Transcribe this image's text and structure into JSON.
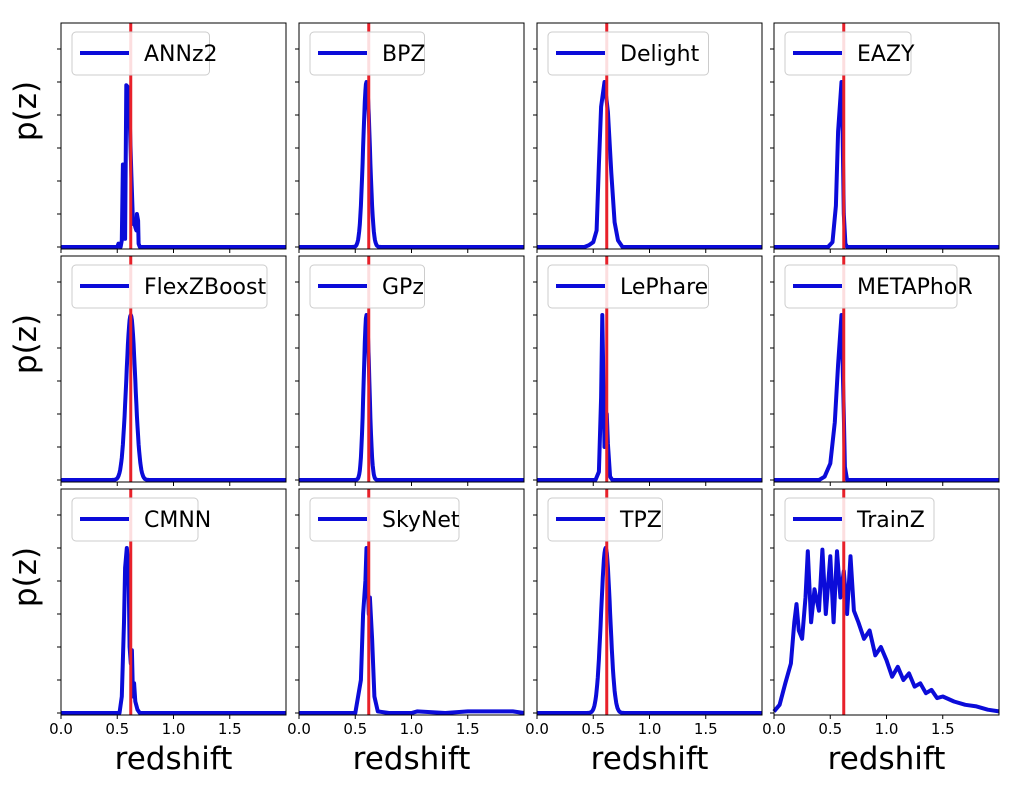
{
  "figure": {
    "ylabel": "p(z)",
    "xlabel": "redshift",
    "true_redshift_color": "#e8212a",
    "pdf_color": "#0b0bd9",
    "axis_color": "#000000"
  },
  "chart_data": [
    {
      "type": "line",
      "legend": "ANNz2",
      "xlim": [
        0,
        2
      ],
      "ylim": [
        0,
        1
      ],
      "true_z": 0.62,
      "points": [
        [
          0,
          0
        ],
        [
          0.5,
          0
        ],
        [
          0.51,
          0.02
        ],
        [
          0.53,
          0
        ],
        [
          0.54,
          0.04
        ],
        [
          0.55,
          0.5
        ],
        [
          0.56,
          0.5
        ],
        [
          0.57,
          0.05
        ],
        [
          0.58,
          0.98
        ],
        [
          0.595,
          0.97
        ],
        [
          0.61,
          0.8
        ],
        [
          0.625,
          0.45
        ],
        [
          0.64,
          0.14
        ],
        [
          0.65,
          0.15
        ],
        [
          0.66,
          0.12
        ],
        [
          0.67,
          0.1
        ],
        [
          0.675,
          0.2
        ],
        [
          0.685,
          0.16
        ],
        [
          0.69,
          0.02
        ],
        [
          0.7,
          0
        ],
        [
          2,
          0
        ]
      ]
    },
    {
      "type": "line",
      "legend": "BPZ",
      "xlim": [
        0,
        2
      ],
      "ylim": [
        0,
        1
      ],
      "true_z": 0.62,
      "peak": 0.6,
      "width": 0.03,
      "height": 1.0
    },
    {
      "type": "line",
      "legend": "Delight",
      "xlim": [
        0,
        2
      ],
      "ylim": [
        0,
        1
      ],
      "true_z": 0.62,
      "points": [
        [
          0,
          0
        ],
        [
          0.42,
          0
        ],
        [
          0.46,
          0.01
        ],
        [
          0.5,
          0.03
        ],
        [
          0.53,
          0.1
        ],
        [
          0.55,
          0.5
        ],
        [
          0.57,
          0.85
        ],
        [
          0.6,
          1.0
        ],
        [
          0.63,
          0.82
        ],
        [
          0.66,
          0.45
        ],
        [
          0.69,
          0.15
        ],
        [
          0.72,
          0.04
        ],
        [
          0.76,
          0
        ],
        [
          2,
          0
        ]
      ]
    },
    {
      "type": "line",
      "legend": "EAZY",
      "xlim": [
        0,
        2
      ],
      "ylim": [
        0,
        1
      ],
      "true_z": 0.62,
      "points": [
        [
          0,
          0
        ],
        [
          0.48,
          0
        ],
        [
          0.52,
          0.03
        ],
        [
          0.55,
          0.25
        ],
        [
          0.57,
          0.7
        ],
        [
          0.6,
          1.0
        ],
        [
          0.61,
          0.7
        ],
        [
          0.62,
          0.2
        ],
        [
          0.635,
          0.02
        ],
        [
          0.65,
          0
        ],
        [
          2,
          0
        ]
      ]
    },
    {
      "type": "line",
      "legend": "FlexZBoost",
      "xlim": [
        0,
        2
      ],
      "ylim": [
        0,
        1
      ],
      "true_z": 0.62,
      "peak": 0.62,
      "width": 0.04,
      "height": 1.0
    },
    {
      "type": "line",
      "legend": "GPz",
      "xlim": [
        0,
        2
      ],
      "ylim": [
        0,
        1
      ],
      "true_z": 0.62,
      "peak": 0.6,
      "width": 0.025,
      "height": 1.0
    },
    {
      "type": "line",
      "legend": "LePhare",
      "xlim": [
        0,
        2
      ],
      "ylim": [
        0,
        1
      ],
      "true_z": 0.62,
      "points": [
        [
          0,
          0
        ],
        [
          0.52,
          0
        ],
        [
          0.55,
          0.05
        ],
        [
          0.57,
          0.5
        ],
        [
          0.58,
          1.0
        ],
        [
          0.59,
          0.6
        ],
        [
          0.6,
          0.2
        ],
        [
          0.62,
          0.4
        ],
        [
          0.63,
          0.22
        ],
        [
          0.65,
          0.02
        ],
        [
          0.67,
          0
        ],
        [
          2,
          0
        ]
      ]
    },
    {
      "type": "line",
      "legend": "METAPhoR",
      "xlim": [
        0,
        2
      ],
      "ylim": [
        0,
        1
      ],
      "true_z": 0.62,
      "points": [
        [
          0,
          0
        ],
        [
          0.4,
          0
        ],
        [
          0.45,
          0.02
        ],
        [
          0.5,
          0.1
        ],
        [
          0.54,
          0.35
        ],
        [
          0.57,
          0.7
        ],
        [
          0.6,
          1.0
        ],
        [
          0.62,
          0.4
        ],
        [
          0.63,
          0.08
        ],
        [
          0.65,
          0
        ],
        [
          2,
          0
        ]
      ]
    },
    {
      "type": "line",
      "legend": "CMNN",
      "xlim": [
        0,
        2
      ],
      "ylim": [
        0,
        1
      ],
      "true_z": 0.62,
      "points": [
        [
          0,
          0
        ],
        [
          0.52,
          0
        ],
        [
          0.54,
          0.1
        ],
        [
          0.56,
          0.55
        ],
        [
          0.57,
          0.88
        ],
        [
          0.585,
          1.0
        ],
        [
          0.6,
          0.9
        ],
        [
          0.61,
          0.4
        ],
        [
          0.62,
          0.3
        ],
        [
          0.63,
          0.38
        ],
        [
          0.64,
          0.1
        ],
        [
          0.65,
          0.18
        ],
        [
          0.66,
          0.07
        ],
        [
          0.68,
          0.02
        ],
        [
          0.7,
          0
        ],
        [
          2,
          0
        ]
      ]
    },
    {
      "type": "line",
      "legend": "SkyNet",
      "xlim": [
        0,
        2
      ],
      "ylim": [
        0,
        1
      ],
      "true_z": 0.62,
      "points": [
        [
          0,
          0
        ],
        [
          0.5,
          0
        ],
        [
          0.55,
          0.2
        ],
        [
          0.57,
          0.6
        ],
        [
          0.59,
          0.8
        ],
        [
          0.6,
          1.0
        ],
        [
          0.62,
          0.6
        ],
        [
          0.63,
          0.7
        ],
        [
          0.65,
          0.45
        ],
        [
          0.67,
          0.1
        ],
        [
          0.7,
          0.01
        ],
        [
          0.8,
          0
        ],
        [
          1.0,
          0
        ],
        [
          1.05,
          0.01
        ],
        [
          1.3,
          0
        ],
        [
          1.5,
          0.01
        ],
        [
          1.9,
          0.01
        ],
        [
          2,
          0
        ]
      ]
    },
    {
      "type": "line",
      "legend": "TPZ",
      "xlim": [
        0,
        2
      ],
      "ylim": [
        0,
        1
      ],
      "true_z": 0.62,
      "peak": 0.61,
      "width": 0.04,
      "height": 1.0
    },
    {
      "type": "line",
      "legend": "TrainZ",
      "xlim": [
        0,
        2
      ],
      "ylim": [
        0,
        1
      ],
      "true_z": 0.62,
      "points": [
        [
          0.0,
          0.01
        ],
        [
          0.05,
          0.05
        ],
        [
          0.1,
          0.18
        ],
        [
          0.15,
          0.3
        ],
        [
          0.18,
          0.55
        ],
        [
          0.2,
          0.66
        ],
        [
          0.22,
          0.5
        ],
        [
          0.25,
          0.45
        ],
        [
          0.28,
          0.7
        ],
        [
          0.3,
          0.98
        ],
        [
          0.33,
          0.55
        ],
        [
          0.36,
          0.75
        ],
        [
          0.4,
          0.62
        ],
        [
          0.43,
          0.99
        ],
        [
          0.46,
          0.6
        ],
        [
          0.5,
          0.95
        ],
        [
          0.53,
          0.55
        ],
        [
          0.56,
          0.98
        ],
        [
          0.59,
          0.7
        ],
        [
          0.62,
          0.86
        ],
        [
          0.65,
          0.6
        ],
        [
          0.68,
          0.95
        ],
        [
          0.71,
          0.62
        ],
        [
          0.75,
          0.55
        ],
        [
          0.8,
          0.45
        ],
        [
          0.85,
          0.5
        ],
        [
          0.9,
          0.35
        ],
        [
          0.95,
          0.4
        ],
        [
          1.0,
          0.32
        ],
        [
          1.05,
          0.22
        ],
        [
          1.1,
          0.28
        ],
        [
          1.15,
          0.2
        ],
        [
          1.2,
          0.24
        ],
        [
          1.25,
          0.16
        ],
        [
          1.3,
          0.18
        ],
        [
          1.35,
          0.12
        ],
        [
          1.4,
          0.14
        ],
        [
          1.45,
          0.09
        ],
        [
          1.5,
          0.1
        ],
        [
          1.6,
          0.07
        ],
        [
          1.7,
          0.05
        ],
        [
          1.8,
          0.04
        ],
        [
          1.9,
          0.02
        ],
        [
          2.0,
          0.01
        ]
      ]
    }
  ]
}
